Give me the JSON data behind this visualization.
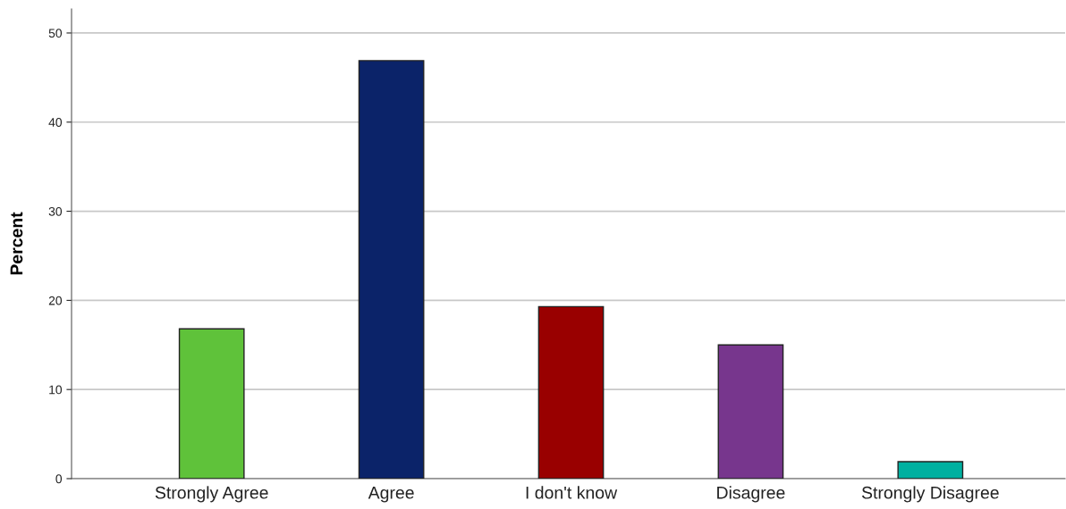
{
  "chart_data": {
    "type": "bar",
    "ylabel": "Percent",
    "categories": [
      "Strongly Agree",
      "Agree",
      "I don't know",
      "Disagree",
      "Strongly Disagree"
    ],
    "values": [
      16.8,
      46.9,
      19.3,
      15.0,
      1.9
    ],
    "colors": [
      "#5fc23a",
      "#0b2369",
      "#990000",
      "#77368d",
      "#00b0a0"
    ],
    "ylim": [
      0,
      52.7
    ],
    "yticks": [
      0,
      10,
      20,
      30,
      40,
      50
    ],
    "grid": "y",
    "legend": false
  }
}
